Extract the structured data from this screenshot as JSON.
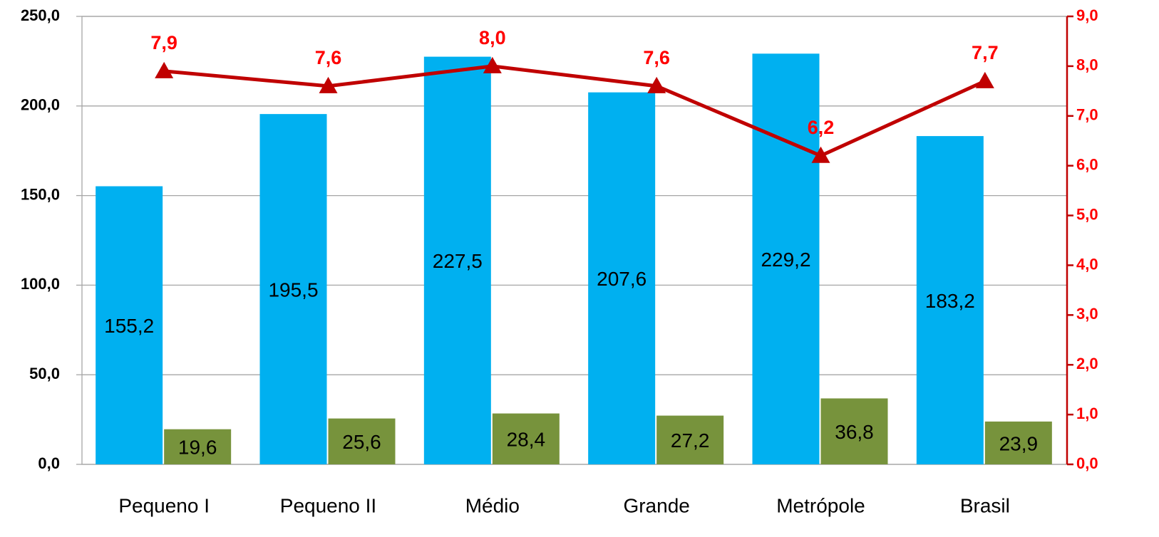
{
  "chart_data": {
    "type": "bar",
    "categories": [
      "Pequeno I",
      "Pequeno II",
      "Médio",
      "Grande",
      "Metrópole",
      "Brasil"
    ],
    "series": [
      {
        "type": "bar",
        "color": "#00b0f0",
        "values": [
          155.2,
          195.5,
          227.5,
          207.6,
          229.2,
          183.2
        ],
        "value_labels": [
          "155,2",
          "195,5",
          "227,5",
          "207,6",
          "229,2",
          "183,2"
        ]
      },
      {
        "type": "bar",
        "color": "#77933c",
        "values": [
          19.6,
          25.6,
          28.4,
          27.2,
          36.8,
          23.9
        ],
        "value_labels": [
          "19,6",
          "25,6",
          "28,4",
          "27,2",
          "36,8",
          "23,9"
        ]
      },
      {
        "type": "line",
        "axis": "y2",
        "color": "#c00000",
        "values": [
          7.9,
          7.6,
          8.0,
          7.6,
          6.2,
          7.7
        ],
        "value_labels": [
          "7,9",
          "7,6",
          "8,0",
          "7,6",
          "6,2",
          "7,7"
        ]
      }
    ],
    "ylim": [
      0,
      250
    ],
    "yticks": [
      {
        "value": 0,
        "label": "0,0"
      },
      {
        "value": 50,
        "label": "50,0"
      },
      {
        "value": 100,
        "label": "100,0"
      },
      {
        "value": 150,
        "label": "150,0"
      },
      {
        "value": 200,
        "label": "200,0"
      },
      {
        "value": 250,
        "label": "250,0"
      }
    ],
    "y2lim": [
      0,
      9
    ],
    "y2ticks": [
      {
        "value": 0,
        "label": "0,0"
      },
      {
        "value": 1,
        "label": "1,0"
      },
      {
        "value": 2,
        "label": "2,0"
      },
      {
        "value": 3,
        "label": "3,0"
      },
      {
        "value": 4,
        "label": "4,0"
      },
      {
        "value": 5,
        "label": "5,0"
      },
      {
        "value": 6,
        "label": "6,0"
      },
      {
        "value": 7,
        "label": "7,0"
      },
      {
        "value": 8,
        "label": "8,0"
      },
      {
        "value": 9,
        "label": "9,0"
      }
    ],
    "grid": true
  }
}
